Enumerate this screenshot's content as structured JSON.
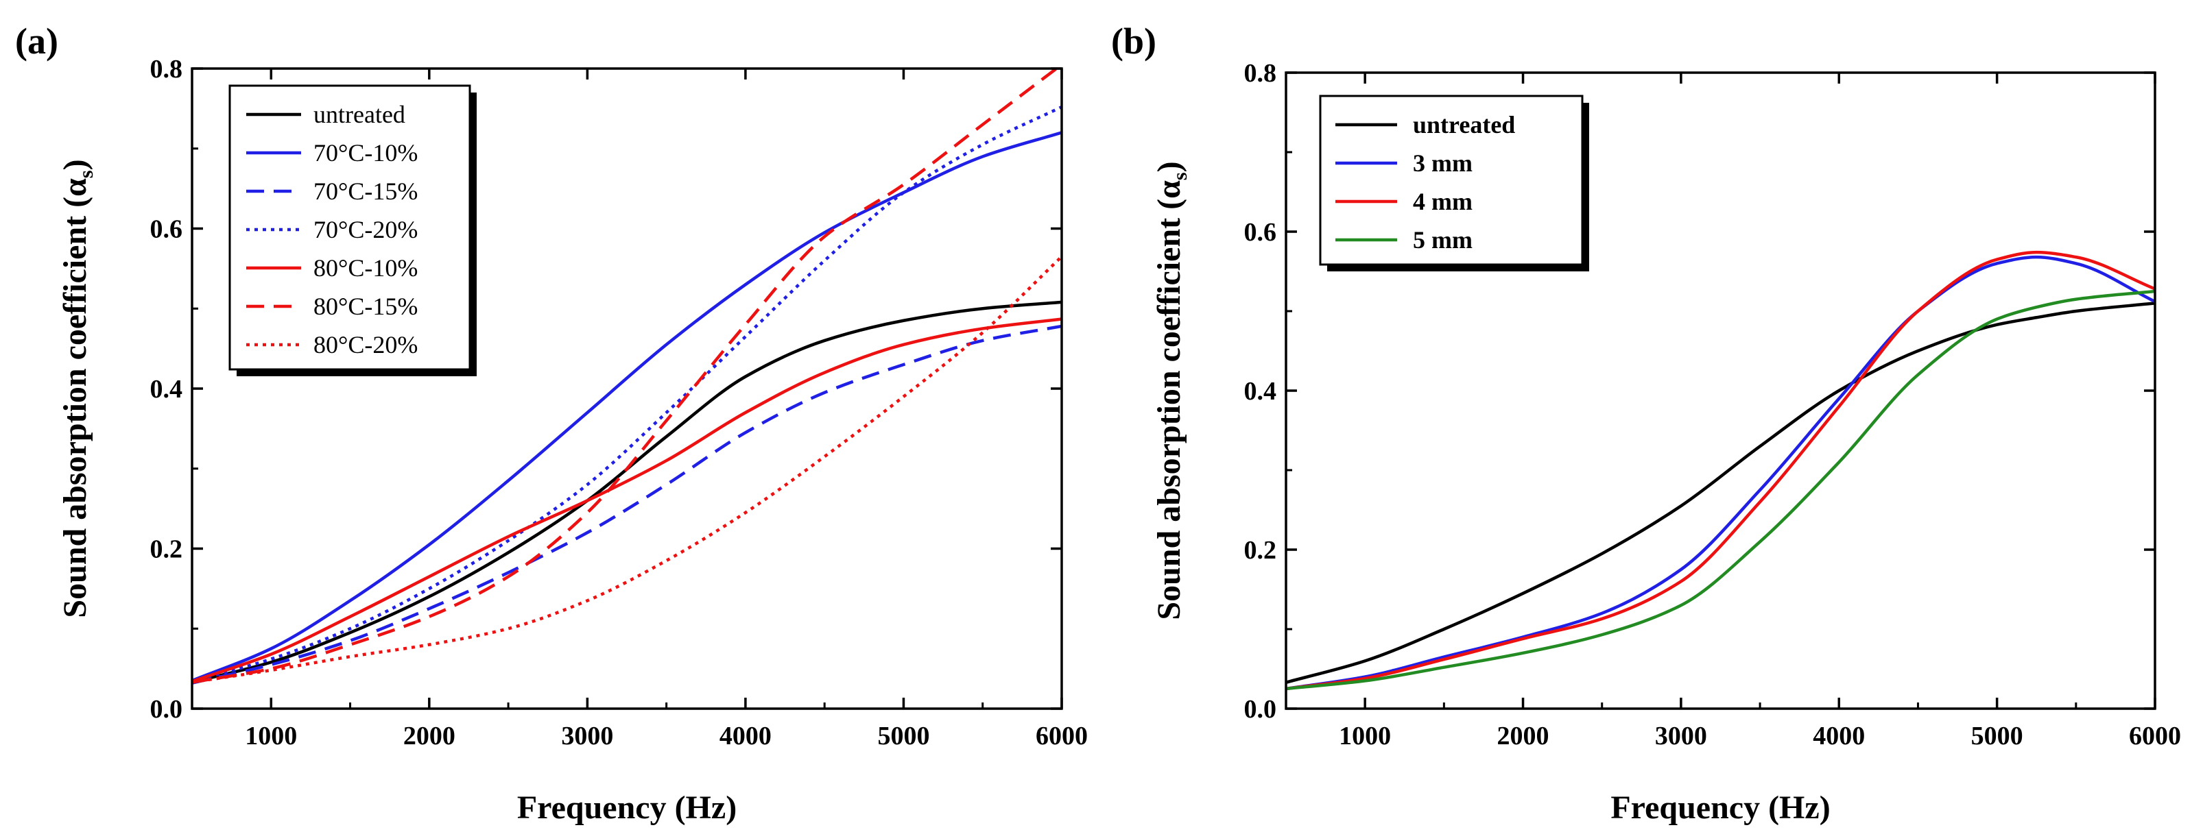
{
  "figure": {
    "panels": [
      "(a)",
      "(b)"
    ]
  },
  "chart_data": [
    {
      "panel_label": "(a)",
      "type": "line",
      "title": "",
      "xlabel": "Frequency (Hz)",
      "ylabel": "Sound absorption coefficient (α",
      "ylabel_sub": "s",
      "xlim": [
        500,
        6000
      ],
      "ylim": [
        0,
        0.8
      ],
      "xticks": [
        1000,
        2000,
        3000,
        4000,
        5000,
        6000
      ],
      "yticks": [
        0.0,
        0.2,
        0.4,
        0.6,
        0.8
      ],
      "ytick_labels": [
        "0.0",
        "0.2",
        "0.4",
        "0.6",
        "0.8"
      ],
      "legend_position": "top-left",
      "x": [
        500,
        1000,
        1500,
        2000,
        2500,
        3000,
        3500,
        4000,
        4500,
        5000,
        5500,
        6000
      ],
      "series": [
        {
          "name": "untreated",
          "color": "#000000",
          "dash": "solid",
          "values": [
            0.033,
            0.058,
            0.095,
            0.14,
            0.195,
            0.26,
            0.34,
            0.415,
            0.46,
            0.485,
            0.5,
            0.508
          ]
        },
        {
          "name": "70°C-10%",
          "color": "#1f1fe6",
          "dash": "solid",
          "values": [
            0.035,
            0.075,
            0.135,
            0.205,
            0.285,
            0.37,
            0.455,
            0.53,
            0.595,
            0.645,
            0.69,
            0.72
          ]
        },
        {
          "name": "70°C-15%",
          "color": "#1f1fe6",
          "dash": "dashed",
          "values": [
            0.032,
            0.055,
            0.085,
            0.125,
            0.17,
            0.22,
            0.28,
            0.345,
            0.395,
            0.43,
            0.46,
            0.478
          ]
        },
        {
          "name": "70°C-20%",
          "color": "#1f1fe6",
          "dash": "dotted",
          "values": [
            0.034,
            0.062,
            0.1,
            0.15,
            0.21,
            0.28,
            0.37,
            0.465,
            0.56,
            0.645,
            0.705,
            0.752
          ]
        },
        {
          "name": "80°C-10%",
          "color": "#ee1111",
          "dash": "solid",
          "values": [
            0.034,
            0.068,
            0.115,
            0.165,
            0.215,
            0.26,
            0.31,
            0.37,
            0.42,
            0.455,
            0.475,
            0.487
          ]
        },
        {
          "name": "80°C-15%",
          "color": "#ee1111",
          "dash": "dashed",
          "values": [
            0.033,
            0.05,
            0.08,
            0.115,
            0.165,
            0.245,
            0.36,
            0.48,
            0.59,
            0.655,
            0.73,
            0.805
          ]
        },
        {
          "name": "80°C-20%",
          "color": "#ee1111",
          "dash": "dotted",
          "values": [
            0.033,
            0.048,
            0.065,
            0.08,
            0.1,
            0.135,
            0.185,
            0.245,
            0.315,
            0.39,
            0.47,
            0.565
          ]
        }
      ]
    },
    {
      "panel_label": "(b)",
      "type": "line",
      "title": "",
      "xlabel": "Frequency (Hz)",
      "ylabel": "Sound absorption coefficient (α",
      "ylabel_sub": "s",
      "xlim": [
        500,
        6000
      ],
      "ylim": [
        0,
        0.8
      ],
      "xticks": [
        1000,
        2000,
        3000,
        4000,
        5000,
        6000
      ],
      "yticks": [
        0.0,
        0.2,
        0.4,
        0.6,
        0.8
      ],
      "ytick_labels": [
        "0.0",
        "0.2",
        "0.4",
        "0.6",
        "0.8"
      ],
      "legend_position": "top-left",
      "x": [
        500,
        1000,
        1500,
        2000,
        2500,
        3000,
        3500,
        4000,
        4500,
        5000,
        5250,
        5500,
        6000
      ],
      "series": [
        {
          "name": "untreated",
          "color": "#000000",
          "dash": "solid",
          "values": [
            0.033,
            0.06,
            0.1,
            0.145,
            0.195,
            0.255,
            0.33,
            0.4,
            0.45,
            0.483,
            0.492,
            0.5,
            0.51
          ]
        },
        {
          "name": "3 mm",
          "color": "#1f1fe6",
          "dash": "solid",
          "values": [
            0.025,
            0.04,
            0.065,
            0.09,
            0.12,
            0.175,
            0.275,
            0.39,
            0.5,
            0.56,
            0.568,
            0.56,
            0.512
          ]
        },
        {
          "name": "4 mm",
          "color": "#ee1111",
          "dash": "solid",
          "values": [
            0.025,
            0.038,
            0.062,
            0.088,
            0.113,
            0.16,
            0.26,
            0.38,
            0.5,
            0.565,
            0.574,
            0.568,
            0.528
          ]
        },
        {
          "name": "5 mm",
          "color": "#228b22",
          "dash": "solid",
          "values": [
            0.025,
            0.035,
            0.052,
            0.07,
            0.093,
            0.13,
            0.21,
            0.31,
            0.42,
            0.49,
            0.505,
            0.515,
            0.525
          ]
        }
      ]
    }
  ]
}
